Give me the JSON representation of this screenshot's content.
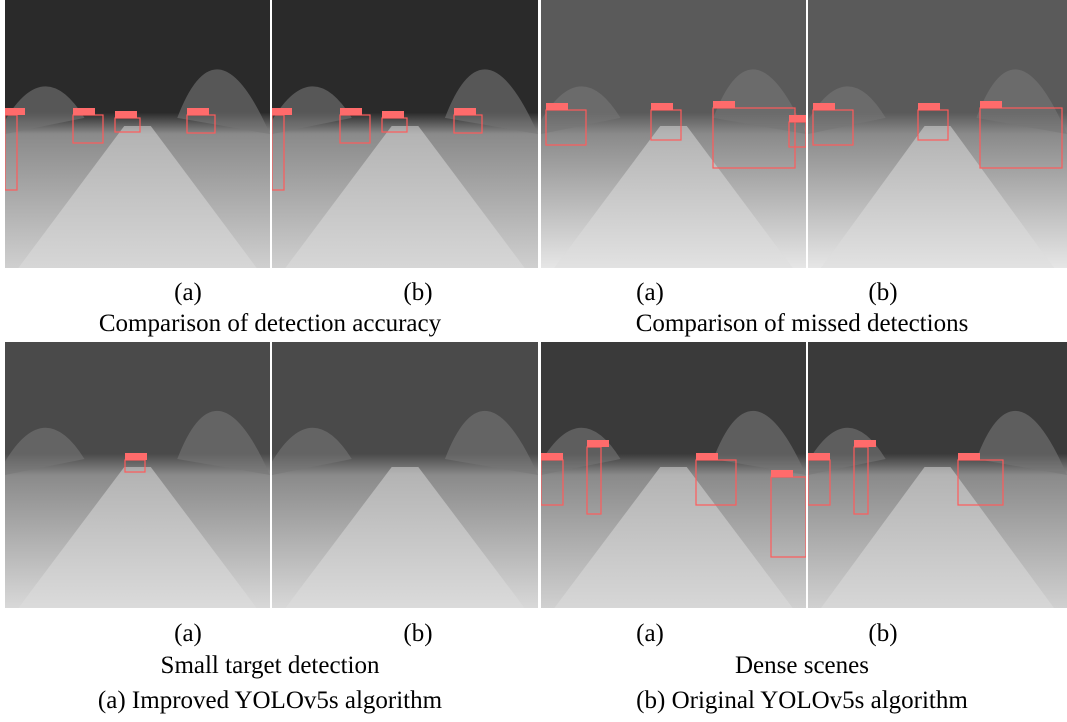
{
  "panels": [
    {
      "labels": [
        "(a)",
        "(b)"
      ],
      "caption": "Comparison of detection accuracy"
    },
    {
      "labels": [
        "(a)",
        "(b)"
      ],
      "caption": "Comparison of missed detections"
    },
    {
      "labels": [
        "(a)",
        "(b)"
      ],
      "caption": "Small target detection"
    },
    {
      "labels": [
        "(a)",
        "(b)"
      ],
      "caption": "Dense scenes"
    }
  ],
  "legend": [
    "(a) Improved YOLOv5s algorithm",
    "(b) Original YOLOv5s algorithm"
  ]
}
